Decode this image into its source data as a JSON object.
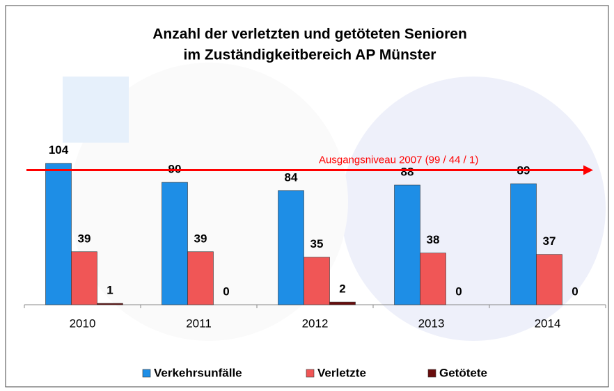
{
  "chart_data": {
    "type": "bar",
    "title": [
      "Anzahl der verletzten und getöteten Senioren",
      "im Zuständigkeitbereich AP Münster"
    ],
    "categories": [
      "2010",
      "2011",
      "2012",
      "2013",
      "2014"
    ],
    "series": [
      {
        "name": "Verkehrsunfälle",
        "color": "#1e8ee6",
        "values": [
          104,
          90,
          84,
          88,
          89
        ]
      },
      {
        "name": "Verletzte",
        "color": "#f05656",
        "values": [
          39,
          39,
          35,
          38,
          37
        ]
      },
      {
        "name": "Getötete",
        "color": "#6a0d0d",
        "values": [
          1,
          0,
          2,
          0,
          0
        ]
      }
    ],
    "ylim": [
      0,
      110
    ],
    "reference_line": {
      "value": 99,
      "label": "Ausgangsniveau  2007 (99 / 44 / 1)",
      "color": "#ff0000"
    },
    "legend": "bottom"
  }
}
